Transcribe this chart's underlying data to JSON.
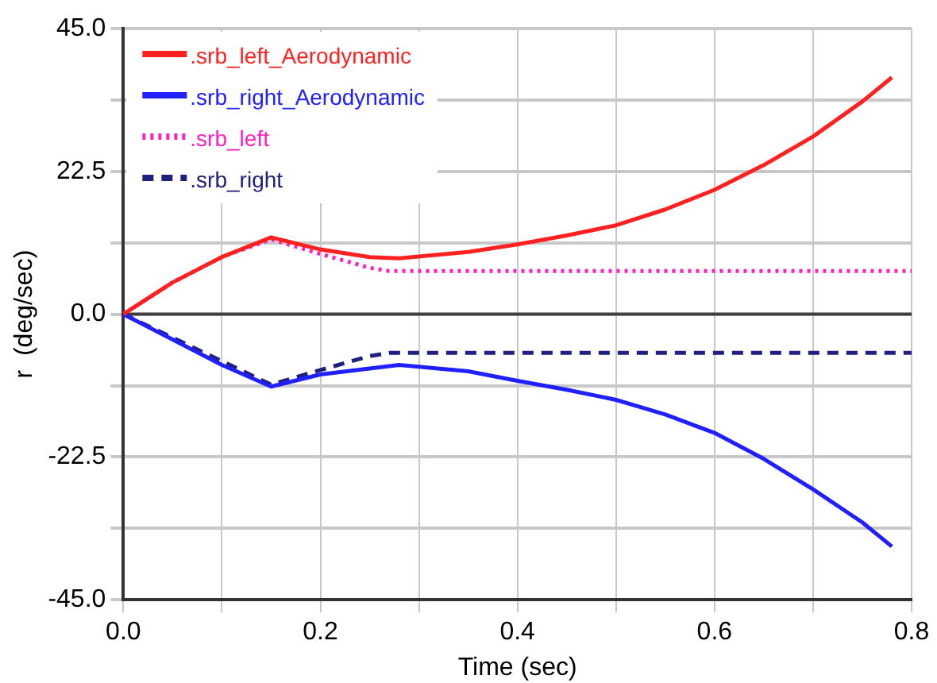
{
  "chart_data": {
    "type": "line",
    "xlabel": "Time (sec)",
    "ylabel": "r  (deg/sec)",
    "xlim": [
      0,
      0.8
    ],
    "xticks": [
      {
        "value": 0,
        "label": "0.0"
      },
      {
        "value": 0.1,
        "label": null
      },
      0.2,
      {
        "value": 0.3,
        "label": null
      },
      0.4,
      {
        "value": 0.5,
        "label": null
      },
      0.6,
      {
        "value": 0.7,
        "label": null
      },
      0.8
    ],
    "ylim": [
      -45,
      45
    ],
    "yticks": [
      {
        "value": -45,
        "label": "-45.0"
      },
      {
        "value": -33.75,
        "label": null
      },
      -22.5,
      {
        "value": -11.25,
        "label": null
      },
      {
        "value": 0,
        "label": "0.0"
      },
      {
        "value": 11.25,
        "label": null
      },
      22.5,
      {
        "value": 33.75,
        "label": null
      },
      {
        "value": 45,
        "label": "45.0"
      }
    ],
    "grid": true,
    "legend": "top left",
    "marker": "none",
    "ref_lines": [
      {
        "axis": "y",
        "value": 0,
        "color": "#404040"
      }
    ],
    "series": [
      {
        "name": ".srb_left_Aerodynamic",
        "color": "#ff2020",
        "line_style": "solid",
        "x": [
          0,
          0.05,
          0.1,
          0.15,
          0.2,
          0.25,
          0.28,
          0.35,
          0.4,
          0.45,
          0.5,
          0.55,
          0.6,
          0.65,
          0.7,
          0.75,
          0.78
        ],
        "values": [
          0,
          5,
          9,
          12.1,
          10.2,
          9,
          8.8,
          9.8,
          11,
          12.4,
          14,
          16.5,
          19.6,
          23.5,
          28,
          33.5,
          37.3
        ]
      },
      {
        "name": ".srb_right_Aerodynamic",
        "color": "#2020ff",
        "line_style": "solid",
        "x": [
          0,
          0.05,
          0.1,
          0.15,
          0.2,
          0.28,
          0.35,
          0.4,
          0.45,
          0.5,
          0.55,
          0.6,
          0.65,
          0.7,
          0.75,
          0.78
        ],
        "values": [
          0,
          -4,
          -8,
          -11.4,
          -9.5,
          -8,
          -9,
          -10.5,
          -11.9,
          -13.5,
          -15.8,
          -18.7,
          -22.8,
          -27.6,
          -32.8,
          -36.6
        ]
      },
      {
        "name": ".srb_left",
        "color": "#ff20c0",
        "line_style": "dotted",
        "x": [
          0,
          0.05,
          0.1,
          0.15,
          0.2,
          0.25,
          0.27,
          0.8
        ],
        "values": [
          0,
          5,
          9,
          11.8,
          9.5,
          7.3,
          6.8,
          6.8
        ]
      },
      {
        "name": ".srb_right",
        "color": "#202080",
        "line_style": "dashed",
        "x": [
          0,
          0.15,
          0.2,
          0.25,
          0.27,
          0.8
        ],
        "values": [
          0,
          -11.1,
          -8.8,
          -6.6,
          -6.1,
          -6.1
        ]
      }
    ]
  }
}
